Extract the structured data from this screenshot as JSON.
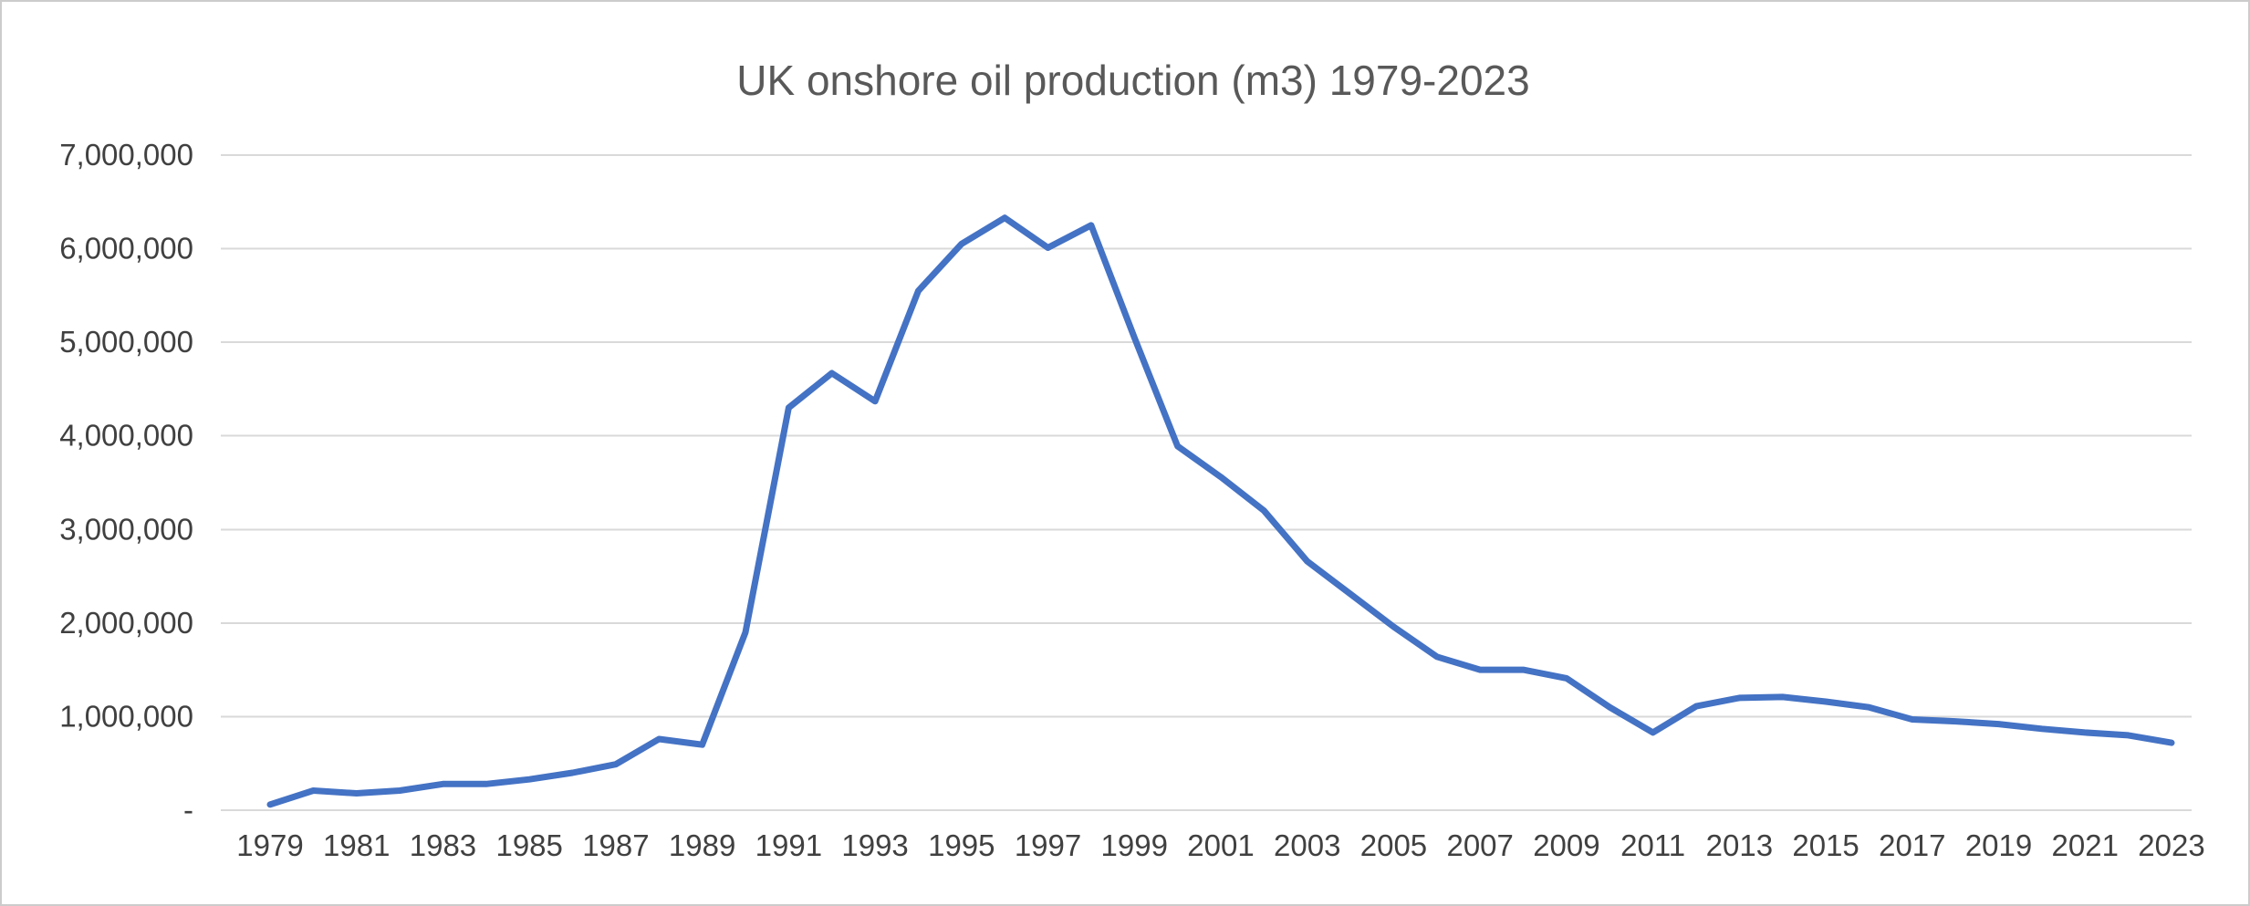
{
  "chart_data": {
    "type": "line",
    "title": "UK onshore oil production (m3) 1979-2023",
    "xlabel": "",
    "ylabel": "",
    "ylim": [
      0,
      7000000
    ],
    "y_tick_interval": 1000000,
    "grid": true,
    "legend": "none",
    "x": [
      1979,
      1980,
      1981,
      1982,
      1983,
      1984,
      1985,
      1986,
      1987,
      1988,
      1989,
      1990,
      1991,
      1992,
      1993,
      1994,
      1995,
      1996,
      1997,
      1998,
      1999,
      2000,
      2001,
      2002,
      2003,
      2004,
      2005,
      2006,
      2007,
      2008,
      2009,
      2010,
      2011,
      2012,
      2013,
      2014,
      2015,
      2016,
      2017,
      2018,
      2019,
      2020,
      2021,
      2022,
      2023
    ],
    "values": [
      60000,
      210000,
      180000,
      210000,
      280000,
      280000,
      330000,
      400000,
      490000,
      760000,
      700000,
      1900000,
      4300000,
      4670000,
      4370000,
      5550000,
      6050000,
      6330000,
      6010000,
      6250000,
      5050000,
      3890000,
      3560000,
      3200000,
      2660000,
      2310000,
      1960000,
      1640000,
      1500000,
      1500000,
      1410000,
      1100000,
      830000,
      1110000,
      1200000,
      1210000,
      1160000,
      1100000,
      970000,
      950000,
      920000,
      870000,
      830000,
      800000,
      720000
    ],
    "y_tick_values": [
      0,
      1000000,
      2000000,
      3000000,
      4000000,
      5000000,
      6000000,
      7000000
    ],
    "y_tick_labels": [
      "-",
      "1,000,000",
      "2,000,000",
      "3,000,000",
      "4,000,000",
      "5,000,000",
      "6,000,000",
      "7,000,000"
    ],
    "x_tick_years": [
      1979,
      1981,
      1983,
      1985,
      1987,
      1989,
      1991,
      1993,
      1995,
      1997,
      1999,
      2001,
      2003,
      2005,
      2007,
      2009,
      2011,
      2013,
      2015,
      2017,
      2019,
      2021,
      2023
    ],
    "x_tick_labels": [
      "1979",
      "1981",
      "1983",
      "1985",
      "1987",
      "1989",
      "1991",
      "1993",
      "1995",
      "1997",
      "1999",
      "2001",
      "2003",
      "2005",
      "2007",
      "2009",
      "2011",
      "2013",
      "2015",
      "2017",
      "2019",
      "2021",
      "2023"
    ],
    "colors": {
      "line": "#4472C4",
      "gridline": "#D9D9D9",
      "title_text": "#595959",
      "tick_text": "#404040",
      "background": "#FFFFFF"
    }
  }
}
